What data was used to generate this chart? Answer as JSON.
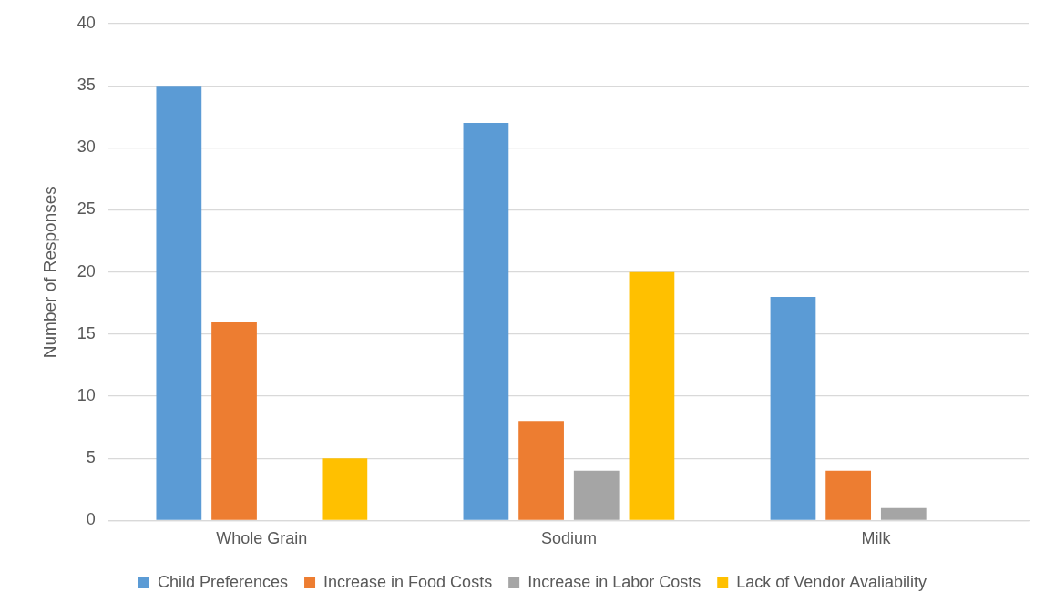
{
  "chart_data": {
    "type": "bar",
    "ylabel": "Number of Responses",
    "categories": [
      "Whole Grain",
      "Sodium",
      "Milk"
    ],
    "series": [
      {
        "name": "Child Preferences",
        "color": "#5b9bd5",
        "values": [
          35,
          32,
          18
        ]
      },
      {
        "name": "Increase in Food Costs",
        "color": "#ed7d31",
        "values": [
          16,
          8,
          4
        ]
      },
      {
        "name": "Increase in Labor Costs",
        "color": "#a5a5a5",
        "values": [
          0,
          4,
          1
        ]
      },
      {
        "name": "Lack of Vendor Avaliability",
        "color": "#ffc000",
        "values": [
          5,
          20,
          0
        ]
      }
    ],
    "ylim": [
      0,
      40
    ],
    "yticks": [
      0,
      5,
      10,
      15,
      20,
      25,
      30,
      35,
      40
    ],
    "grid": "y",
    "legend": "bottom"
  }
}
